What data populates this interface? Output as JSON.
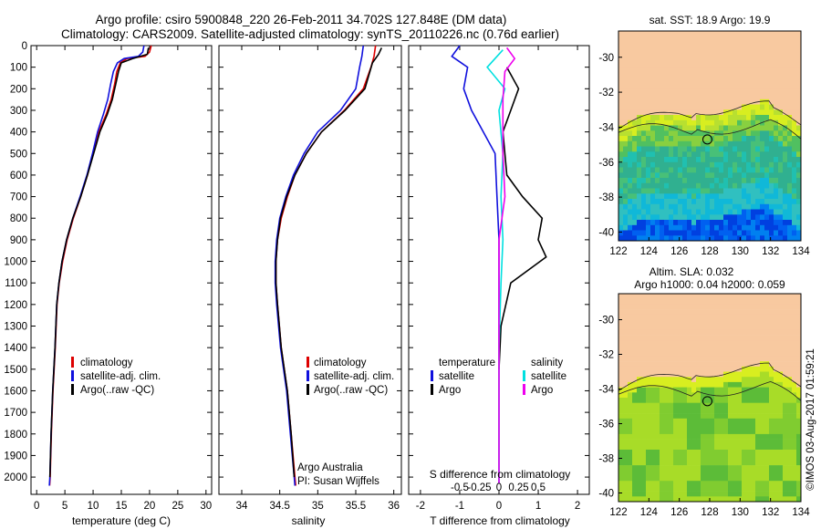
{
  "title": {
    "line1": "Argo profile: csiro 5900848_220 26-Feb-2011 34.702S 127.848E (DM data)",
    "line2": "Climatology: CARS2009. Satellite-adjusted climatology: synTS_20110226.nc (0.76d earlier)"
  },
  "credit": "Argo Australia",
  "pi": "PI: Susan Wijffels",
  "watermark": "©IMOS 03-Aug-2017 01:59:21",
  "colors": {
    "climatology": "#dd0000",
    "satellite": "#1010dd",
    "argo": "#000000",
    "cyan": "#00e0e0",
    "magenta": "#ee00ee",
    "land": "#f8c9a0"
  },
  "chart_data": [
    {
      "type": "line",
      "xlabel": "temperature (deg C)",
      "ylabel": "",
      "xlim": [
        -1,
        31
      ],
      "ylim": [
        2080,
        0
      ],
      "xticks": [
        0,
        5,
        10,
        15,
        20,
        25,
        30
      ],
      "yticks": [
        0,
        100,
        200,
        300,
        400,
        500,
        600,
        700,
        800,
        900,
        1000,
        1100,
        1200,
        1300,
        1400,
        1500,
        1600,
        1700,
        1800,
        1900,
        2000
      ],
      "legend": [
        "climatology",
        "satellite-adj. clim.",
        "Argo(..raw -QC)"
      ],
      "series": [
        {
          "name": "climatology",
          "color": "red",
          "points": [
            [
              20.3,
              0
            ],
            [
              20.0,
              30
            ],
            [
              19.2,
              50
            ],
            [
              16,
              60
            ],
            [
              14.8,
              80
            ],
            [
              14.2,
              120
            ],
            [
              13.8,
              180
            ],
            [
              13.2,
              250
            ],
            [
              12.3,
              320
            ],
            [
              11.0,
              400
            ],
            [
              10.0,
              500
            ],
            [
              9.0,
              600
            ],
            [
              7.8,
              700
            ],
            [
              6.5,
              800
            ],
            [
              5.4,
              900
            ],
            [
              4.6,
              1000
            ],
            [
              4.0,
              1100
            ],
            [
              3.6,
              1200
            ],
            [
              3.3,
              1400
            ],
            [
              2.9,
              1600
            ],
            [
              2.6,
              1800
            ],
            [
              2.4,
              2000
            ],
            [
              2.3,
              2040
            ]
          ]
        },
        {
          "name": "satellite-adj. clim.",
          "color": "blue",
          "points": [
            [
              19.0,
              0
            ],
            [
              18.8,
              30
            ],
            [
              18.0,
              50
            ],
            [
              15.5,
              60
            ],
            [
              14.3,
              80
            ],
            [
              13.6,
              120
            ],
            [
              13.1,
              180
            ],
            [
              12.6,
              250
            ],
            [
              11.8,
              320
            ],
            [
              10.8,
              400
            ],
            [
              9.9,
              500
            ],
            [
              8.9,
              600
            ],
            [
              7.7,
              700
            ],
            [
              6.4,
              800
            ],
            [
              5.3,
              900
            ],
            [
              4.5,
              1000
            ],
            [
              3.95,
              1100
            ],
            [
              3.55,
              1200
            ],
            [
              3.25,
              1400
            ],
            [
              2.85,
              1600
            ],
            [
              2.55,
              1800
            ],
            [
              2.35,
              2000
            ],
            [
              2.25,
              2040
            ]
          ]
        },
        {
          "name": "Argo(..raw -QC)",
          "color": "black",
          "points": [
            [
              19.8,
              10
            ],
            [
              19.6,
              40
            ],
            [
              17,
              60
            ],
            [
              15.0,
              80
            ],
            [
              14.5,
              120
            ],
            [
              14.0,
              180
            ],
            [
              13.4,
              250
            ],
            [
              12.5,
              320
            ],
            [
              11.2,
              400
            ],
            [
              10.1,
              500
            ],
            [
              9.0,
              600
            ],
            [
              7.8,
              700
            ],
            [
              6.4,
              800
            ],
            [
              5.3,
              900
            ],
            [
              4.5,
              1000
            ],
            [
              3.95,
              1100
            ],
            [
              3.55,
              1200
            ],
            [
              3.25,
              1400
            ],
            [
              2.85,
              1600
            ],
            [
              2.55,
              1800
            ],
            [
              2.35,
              2000
            ]
          ]
        }
      ]
    },
    {
      "type": "line",
      "xlabel": "salinity",
      "xlim": [
        33.7,
        36.1
      ],
      "ylim": [
        2080,
        0
      ],
      "xticks": [
        34,
        34.5,
        35,
        35.5,
        36
      ],
      "legend": [
        "climatology",
        "satellite-adj. clim.",
        "Argo(..raw -QC)"
      ],
      "series": [
        {
          "name": "climatology",
          "color": "red",
          "points": [
            [
              35.76,
              0
            ],
            [
              35.74,
              50
            ],
            [
              35.7,
              100
            ],
            [
              35.6,
              200
            ],
            [
              35.35,
              300
            ],
            [
              35.05,
              400
            ],
            [
              34.85,
              500
            ],
            [
              34.7,
              600
            ],
            [
              34.6,
              700
            ],
            [
              34.52,
              800
            ],
            [
              34.47,
              900
            ],
            [
              34.45,
              1000
            ],
            [
              34.45,
              1100
            ],
            [
              34.47,
              1200
            ],
            [
              34.52,
              1400
            ],
            [
              34.6,
              1600
            ],
            [
              34.65,
              1800
            ],
            [
              34.7,
              2000
            ],
            [
              34.71,
              2040
            ]
          ]
        },
        {
          "name": "satellite-adj. clim.",
          "color": "blue",
          "points": [
            [
              35.6,
              0
            ],
            [
              35.58,
              50
            ],
            [
              35.55,
              100
            ],
            [
              35.5,
              200
            ],
            [
              35.3,
              300
            ],
            [
              35.0,
              400
            ],
            [
              34.82,
              500
            ],
            [
              34.68,
              600
            ],
            [
              34.58,
              700
            ],
            [
              34.5,
              800
            ],
            [
              34.46,
              900
            ],
            [
              34.44,
              1000
            ],
            [
              34.44,
              1100
            ],
            [
              34.46,
              1200
            ],
            [
              34.51,
              1400
            ],
            [
              34.59,
              1600
            ],
            [
              34.64,
              1800
            ],
            [
              34.69,
              2000
            ],
            [
              34.7,
              2040
            ]
          ]
        },
        {
          "name": "Argo(..raw -QC)",
          "color": "black",
          "points": [
            [
              35.84,
              10
            ],
            [
              35.8,
              40
            ],
            [
              35.72,
              80
            ],
            [
              35.62,
              200
            ],
            [
              35.36,
              300
            ],
            [
              35.05,
              400
            ],
            [
              34.85,
              500
            ],
            [
              34.7,
              600
            ],
            [
              34.59,
              700
            ],
            [
              34.51,
              800
            ],
            [
              34.47,
              900
            ],
            [
              34.45,
              1000
            ],
            [
              34.45,
              1100
            ],
            [
              34.47,
              1200
            ],
            [
              34.52,
              1400
            ],
            [
              34.6,
              1600
            ],
            [
              34.65,
              1800
            ],
            [
              34.69,
              2000
            ]
          ]
        }
      ]
    },
    {
      "type": "line",
      "xlabel": "T difference from climatology",
      "xlabel_top": "S difference from climatology",
      "xlim": [
        -2.3,
        2.3
      ],
      "ylim": [
        2080,
        0
      ],
      "xticks": [
        -2,
        -1,
        0,
        1,
        2
      ],
      "xticks_s": [
        -0.5,
        -0.25,
        0,
        0.25,
        0.5
      ],
      "legend": [
        "temperature",
        "satellite",
        "Argo",
        "salinity",
        "satellite",
        "Argo"
      ],
      "series": [
        {
          "name": "temperature satellite",
          "color": "blue",
          "points": [
            [
              -1.0,
              0
            ],
            [
              -1.2,
              50
            ],
            [
              -0.8,
              100
            ],
            [
              -0.9,
              200
            ],
            [
              -0.7,
              300
            ],
            [
              -0.4,
              400
            ],
            [
              -0.1,
              500
            ],
            [
              -0.05,
              700
            ],
            [
              0.0,
              900
            ],
            [
              0.0,
              1100
            ],
            [
              0.0,
              1500
            ],
            [
              0.0,
              2030
            ]
          ]
        },
        {
          "name": "temperature Argo",
          "color": "black",
          "points": [
            [
              0.2,
              100
            ],
            [
              0.5,
              200
            ],
            [
              0.3,
              300
            ],
            [
              0.1,
              400
            ],
            [
              0.2,
              600
            ],
            [
              0.6,
              700
            ],
            [
              1.1,
              800
            ],
            [
              1.0,
              900
            ],
            [
              1.2,
              980
            ],
            [
              0.3,
              1100
            ],
            [
              0.05,
              1300
            ],
            [
              0.0,
              1500
            ]
          ]
        },
        {
          "name": "salinity satellite",
          "color": "cyan",
          "points": [
            [
              0.1,
              20
            ],
            [
              -0.3,
              100
            ],
            [
              0.15,
              200
            ],
            [
              0.0,
              300
            ],
            [
              0.1,
              500
            ],
            [
              0.05,
              700
            ],
            [
              0.1,
              900
            ],
            [
              0.05,
              1100
            ],
            [
              0.0,
              1400
            ],
            [
              0.0,
              2030
            ]
          ]
        },
        {
          "name": "salinity Argo",
          "color": "magenta",
          "points": [
            [
              0.2,
              10
            ],
            [
              0.4,
              60
            ],
            [
              0.15,
              120
            ],
            [
              0.1,
              250
            ],
            [
              0.1,
              500
            ],
            [
              0.15,
              700
            ],
            [
              0.0,
              900
            ],
            [
              0.0,
              1500
            ],
            [
              0.0,
              2030
            ]
          ]
        }
      ]
    },
    {
      "type": "heatmap",
      "title": "sat. SST: 18.9  Argo: 19.9",
      "xticks": [
        122,
        124,
        126,
        128,
        130,
        132,
        134
      ],
      "yticks": [
        -30,
        -32,
        -34,
        -36,
        -38,
        -40
      ],
      "xlim": [
        122,
        134
      ],
      "ylim": [
        -40.5,
        -28.5
      ],
      "argo_position": [
        127.848,
        -34.702
      ]
    },
    {
      "type": "heatmap",
      "title": "Altim. SLA: 0.032",
      "subtitle": "Argo h1000: 0.04 h2000: 0.059",
      "xticks": [
        122,
        124,
        126,
        128,
        130,
        132,
        134
      ],
      "yticks": [
        -30,
        -32,
        -34,
        -36,
        -38,
        -40
      ],
      "xlim": [
        122,
        134
      ],
      "ylim": [
        -40.5,
        -28.5
      ],
      "argo_position": [
        127.848,
        -34.702
      ]
    }
  ]
}
